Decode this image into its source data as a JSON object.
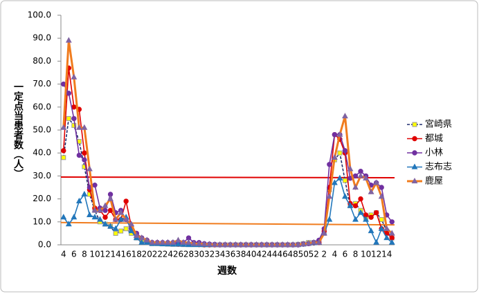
{
  "chart_data": {
    "type": "line",
    "y_label": "一定点当患者数（人）",
    "x_label": "週数",
    "categories": [
      "4",
      null,
      "6",
      null,
      "8",
      null,
      "10",
      null,
      "12",
      null,
      "14",
      null,
      "16",
      null,
      "18",
      null,
      "20",
      null,
      "22",
      null,
      "24",
      null,
      "26",
      null,
      "28",
      null,
      "30",
      null,
      "32",
      null,
      "34",
      null,
      "36",
      null,
      "38",
      null,
      "40",
      null,
      "42",
      null,
      "44",
      null,
      "46",
      null,
      "48",
      null,
      "50",
      null,
      "52",
      null,
      "2",
      null,
      "4",
      null,
      "6",
      null,
      "8",
      null,
      "10",
      null,
      "12",
      null,
      "14",
      null
    ],
    "ylim": [
      0,
      100
    ],
    "yticks": [
      {
        "value": 0,
        "label": "0.0"
      },
      {
        "value": 10,
        "label": "10.0"
      },
      {
        "value": 20,
        "label": "20.0"
      },
      {
        "value": 30,
        "label": "30.0"
      },
      {
        "value": 40,
        "label": "40.0"
      },
      {
        "value": 50,
        "label": "50.0"
      },
      {
        "value": 60,
        "label": "60.0"
      },
      {
        "value": 70,
        "label": "70.0"
      },
      {
        "value": 80,
        "label": "80.0"
      },
      {
        "value": 90,
        "label": "90.0"
      },
      {
        "value": 100,
        "label": "100.0"
      }
    ],
    "legend": "right",
    "reference_lines": [
      {
        "color": "#e00000",
        "values": [
          29.5,
          29.2
        ]
      },
      {
        "color": "#f07c1e",
        "values": [
          9.7,
          8.7
        ]
      }
    ],
    "series": [
      {
        "name": "宮崎県",
        "color": "#1f2d6e",
        "dash": true,
        "marker": "square",
        "marker_color": "#ffff00",
        "values": [
          38,
          55,
          52,
          45,
          34,
          22,
          15,
          10,
          9,
          8,
          5,
          6,
          7,
          5,
          3,
          2,
          1,
          0.5,
          0.5,
          0.5,
          0.3,
          0.2,
          0.2,
          0.1,
          0.1,
          0.1,
          0.1,
          0,
          0,
          0,
          0,
          0,
          0,
          0,
          0,
          0,
          0,
          0,
          0,
          0,
          0,
          0,
          0,
          0,
          0,
          0.2,
          0.5,
          1,
          1,
          1.5,
          5,
          24,
          37,
          40,
          28,
          17,
          18,
          15,
          12,
          13,
          14,
          11,
          6,
          3
        ]
      },
      {
        "name": "都城",
        "color": "#e00000",
        "marker": "circle",
        "marker_color": "#e00000",
        "values": [
          41,
          77,
          60,
          59,
          40,
          24,
          16,
          15,
          12,
          15,
          11,
          11,
          19,
          8,
          5,
          3,
          2,
          1,
          1,
          0.5,
          0.5,
          0.5,
          0.3,
          0.3,
          0.2,
          0.2,
          0.1,
          0,
          0,
          0,
          0,
          0,
          0,
          0,
          0,
          0,
          0,
          0,
          0,
          0,
          0,
          0,
          0,
          0,
          0,
          0,
          0.3,
          0.5,
          0.8,
          1,
          6,
          25,
          48,
          46,
          40,
          18,
          17,
          20,
          13,
          12,
          14,
          7,
          5,
          3
        ]
      },
      {
        "name": "小林",
        "color": "#7030a0",
        "marker": "circle",
        "marker_color": "#7030a0",
        "values": [
          70,
          66,
          55,
          39,
          37,
          25,
          26,
          16,
          15,
          22,
          14,
          15,
          11,
          7,
          5,
          3,
          2,
          1,
          1,
          1,
          1,
          1,
          1,
          1,
          3,
          1,
          1,
          0.5,
          0.3,
          0.2,
          0,
          0,
          0,
          0,
          0,
          0,
          0,
          0,
          0,
          0,
          0,
          0,
          0,
          0,
          0,
          0,
          0.3,
          0.5,
          1,
          2,
          7,
          35,
          48,
          48,
          41,
          29,
          30,
          32,
          30,
          26,
          27,
          25,
          13,
          10
        ]
      },
      {
        "name": "志布志",
        "color": "#2277bb",
        "marker": "triangle",
        "marker_color": "#2277bb",
        "values": [
          12,
          9,
          12,
          19,
          22,
          13,
          12,
          11,
          9,
          8,
          7,
          11,
          12,
          6,
          3,
          1,
          1,
          0.5,
          0.5,
          0.3,
          0.3,
          0.2,
          0.2,
          0.1,
          0,
          0,
          0,
          0,
          0,
          0,
          0,
          0,
          0,
          0,
          0,
          0,
          0,
          0,
          0,
          0,
          0,
          0,
          0,
          0,
          0,
          0,
          0.2,
          0.5,
          0.8,
          1,
          5,
          11,
          27,
          29,
          21,
          17,
          11,
          14,
          11,
          6,
          1,
          7,
          3,
          1
        ]
      },
      {
        "name": "鹿屋",
        "color": "#f07c1e",
        "width": 3,
        "marker": "triangle",
        "marker_color": "#8064a2",
        "values": [
          51,
          89,
          73,
          51,
          51,
          33,
          15,
          15,
          17,
          20,
          11,
          14,
          11,
          9,
          4,
          3,
          2,
          1,
          1,
          1,
          1,
          1,
          2,
          1,
          1,
          0.5,
          0.5,
          0.3,
          0.2,
          0,
          0,
          0,
          0,
          0,
          0,
          0,
          0,
          0,
          0,
          0,
          0,
          0,
          0,
          0,
          0,
          0,
          0.3,
          0.5,
          1,
          1,
          5,
          21,
          38,
          48,
          56,
          33,
          25,
          30,
          29,
          23,
          27,
          21,
          7,
          5
        ]
      }
    ]
  }
}
